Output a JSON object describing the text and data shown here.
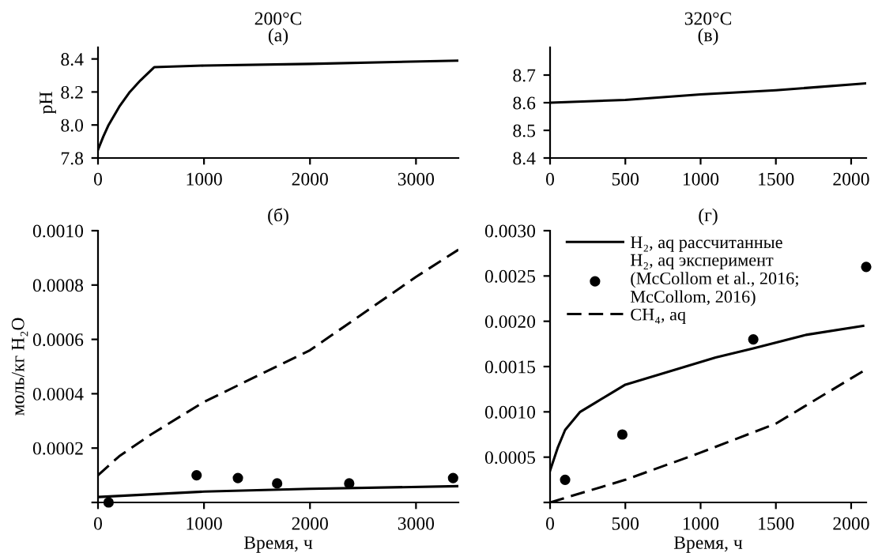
{
  "chart_data": [
    {
      "type": "line",
      "title": "200°C",
      "subtitle": "(a)",
      "ylabel": "pH",
      "xlim": [
        0,
        3400
      ],
      "xticks": [
        0,
        1000,
        2000,
        3000
      ],
      "ylim": [
        7.8,
        8.47
      ],
      "yticks": [
        7.8,
        {
          "value": 8.0,
          "label": "8.0"
        },
        8.2,
        8.4
      ],
      "grid": false,
      "legend": false,
      "series": [
        {
          "color": "#000000",
          "line_style": "solid",
          "x": [
            0,
            50,
            100,
            200,
            300,
            400,
            530,
            1000,
            2000,
            3400
          ],
          "values": [
            7.85,
            7.93,
            8.0,
            8.11,
            8.2,
            8.27,
            8.35,
            8.36,
            8.37,
            8.39
          ]
        }
      ]
    },
    {
      "type": "line",
      "title": "320°C",
      "subtitle": "(в)",
      "xlim": [
        0,
        2100
      ],
      "xticks": [
        0,
        500,
        1000,
        1500,
        2000
      ],
      "ylim": [
        8.4,
        8.8
      ],
      "yticks": [
        8.4,
        8.5,
        8.6,
        8.7
      ],
      "grid": false,
      "legend": false,
      "series": [
        {
          "color": "#000000",
          "line_style": "solid",
          "x": [
            0,
            500,
            1000,
            1500,
            2100
          ],
          "values": [
            8.6,
            8.61,
            8.63,
            8.645,
            8.67
          ]
        }
      ]
    },
    {
      "type": "line",
      "subtitle": "(б)",
      "xlabel": "Время, ч",
      "ylabel": "моль/кг H₂O",
      "xlim": [
        0,
        3400
      ],
      "xticks": [
        0,
        1000,
        2000,
        3000
      ],
      "ylim": [
        0,
        0.001
      ],
      "yticks": [
        {
          "value": 0,
          "label": null
        },
        0.0002,
        0.0004,
        0.0006,
        0.0008,
        {
          "value": 0.001,
          "label": "0.0010"
        }
      ],
      "grid": false,
      "legend": false,
      "series": [
        {
          "color": "#000000",
          "line_style": "solid",
          "x": [
            0,
            1000,
            2000,
            3400
          ],
          "values": [
            2e-05,
            4e-05,
            5e-05,
            6e-05
          ]
        },
        {
          "type": "scatter",
          "color": "#000000",
          "marker": "circle",
          "x": [
            100,
            930,
            1320,
            1690,
            2370,
            3350
          ],
          "values": [
            0.0,
            0.0001,
            9e-05,
            7e-05,
            7e-05,
            9e-05
          ]
        },
        {
          "color": "#000000",
          "line_style": "dashed",
          "x": [
            0,
            200,
            500,
            1000,
            2000,
            3000,
            3400
          ],
          "values": [
            0.0001,
            0.00017,
            0.00025,
            0.00037,
            0.00056,
            0.00083,
            0.00093
          ]
        }
      ]
    },
    {
      "type": "line",
      "subtitle": "(г)",
      "xlabel": "Время, ч",
      "xlim": [
        0,
        2100
      ],
      "xticks": [
        0,
        500,
        1000,
        1500,
        2000
      ],
      "ylim": [
        0,
        0.003
      ],
      "yticks": [
        {
          "value": 0,
          "label": null
        },
        0.0005,
        {
          "value": 0.001,
          "label": "0.0010"
        },
        0.0015,
        {
          "value": 0.002,
          "label": "0.0020"
        },
        0.0025,
        {
          "value": 0.003,
          "label": "0.0030"
        }
      ],
      "grid": false,
      "legend": "top left",
      "series": [
        {
          "name": "H₂, aq рассчитанные",
          "color": "#000000",
          "line_style": "solid",
          "x": [
            0,
            50,
            100,
            200,
            300,
            400,
            500,
            700,
            900,
            1100,
            1350,
            1700,
            2080
          ],
          "values": [
            0.00035,
            0.0006,
            0.0008,
            0.001,
            0.0011,
            0.0012,
            0.0013,
            0.0014,
            0.0015,
            0.0016,
            0.0017,
            0.00185,
            0.00195
          ]
        },
        {
          "type": "scatter",
          "name": "H₂, aq эксперимент\n(McCollom et al., 2016;\nMcCollom, 2016)",
          "color": "#000000",
          "marker": "circle",
          "x": [
            100,
            480,
            1350,
            2100
          ],
          "values": [
            0.00025,
            0.00075,
            0.0018,
            0.0026
          ]
        },
        {
          "name": "CH₄, aq",
          "color": "#000000",
          "line_style": "dashed",
          "x": [
            0,
            200,
            500,
            1000,
            1500,
            2080
          ],
          "values": [
            0.0,
            0.0001,
            0.00025,
            0.00055,
            0.00087,
            0.00145
          ]
        }
      ]
    }
  ]
}
